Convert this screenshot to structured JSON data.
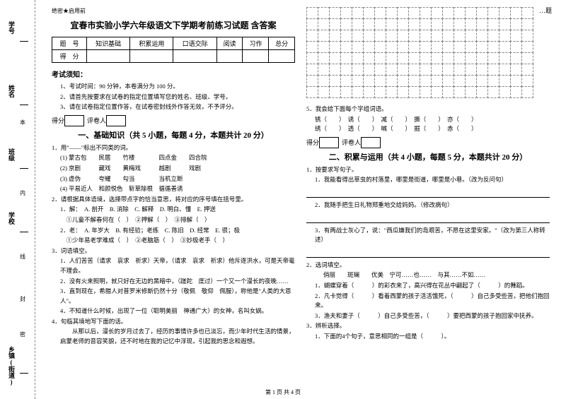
{
  "corner_label": "…题",
  "confidential": "绝密★启用前",
  "title": "宜春市实验小学六年级语文下学期考前练习试题 含答案",
  "score_table": {
    "r1": [
      "题　号",
      "知识基础",
      "积累运用",
      "口语交际",
      "阅读",
      "习作",
      "总分"
    ],
    "r2": [
      "得　分",
      "",
      "",
      "",
      "",
      "",
      ""
    ]
  },
  "notice_head": "考试须知：",
  "notices": [
    "1、考试时间：90 分钟，本卷满分为 100 分。",
    "2、请首先按要求在试卷的指定位置填写您的姓名、班级、学号。",
    "3、请在试卷指定位置作答，在试卷密封线外作答无效，不予评分。"
  ],
  "scorebox_labels": {
    "score": "得分",
    "marker": "评卷人"
  },
  "part1_title": "一、基础知识（共 5 小题，每题 4 分，本题共计 20 分）",
  "q1_head": "1．用\"——\"标出不同类的词。",
  "q1_rows": [
    "(1) 蒙古包　　民居　　竹楼　　　　四点金　　四合院",
    "(2) 京剧　　　藏戏　　黄梅戏　　　越剧　　　戏剧",
    "(3) 虚伪　　　夸耀　　勾当　　　　当机立断",
    "(4) 平易近人　和颜悦色　斩草除根　循循善诱"
  ],
  "q2_head": "2．请根据具体语境，选择带点字的恰当意思，将对应的序号填在括号里。",
  "q2_lines": [
    "1．解：　A. 剖开　B. 消除　C. 解释　D. 明白、懂　E. 押送",
    "　①儿童不解春何在（　）　②押解（　）　③排解（　）",
    "2．老：　A. 年岁大　B. 有经验；老练　C. 陈旧　D. 经常　E. 很；极",
    "　①少年易老学难成（　）　②老脑筋（　）　③妙极老手（　）"
  ],
  "q3_head": "3．词语填空。",
  "q3_lines": [
    "1．人们苦苦（请求　哀求　祈求）天帝，（请求　哀求　祈求）他斥逐洪水，可是天帝毫不理会。",
    "2．没有火来照明，就只好在无边的黑暗中，（蹉跎　度过）一个又一个漫长的夜晚……",
    "3．直到现在，希腊人对普罗米修斯仍然十分（敬佩　敬仰　佩服），称他是\"人类的大恩人\"。",
    "4．不知道什么时候，出现了一位（聪明美丽　神通广大）的女神，名叫女娲。"
  ],
  "q4_head": "4．句临其境地写下面的话。",
  "q4_lines": [
    "　　从那以后，漫长的岁月过去了，经历的事情许多也已淡忘，而少年时代生活的情景，启蒙老师的音容笑貌，还不时地在我的记忆中浮现，引起我的思念和遐想。"
  ],
  "q5_head": "5．我会给下面每个字组词语。",
  "q5_line": "锈（　　）　诱（　　）　减（　　）　撅（　　）　亦（　　）\n绣（　　）　透（　　）　喊（　　）　掘（　　）　赤（　　）",
  "part2_title": "二、积累与运用（共 4 小题，每题 5 分，本题共计 20 分）",
  "p2_q1_head": "1．按要求写句子。",
  "p2_q1_lines": [
    "1．我能看得出草虫的村落里，哪里是街道，哪里是小巷。（改为反问句）",
    "2．我随手把生日礼物郑重地交给妈妈。（修改病句）",
    "3．有两战士灰心了，说：\"西瓜嫌我们的岛艰苦，不愿在这里安家。\"（改为第三人称转述）"
  ],
  "p2_q2_head": "2．选词填空。",
  "p2_q2_line1": "俏丽　　斑斓　　优美　宁可……也……　与其……不如……",
  "p2_q2_lines": [
    "1．蝴蝶穿着（　　　）的彩衣来了，高兴得在花丛中翩起了（　　　）的舞蹈。",
    "2．凡卡觉得（　　　）看着西蒙的孩子活活饿死，（　　　）自己多受些苦，把他们抱回来。",
    "3．渔夫和妻子（　　　）自己多受些苦，（　　　）要把西蒙的孩子抱回家中抚养。"
  ],
  "p2_q3_head": "3．辨析选择。",
  "p2_q3_line": "1．下面的4个句子，意思相同的一组是（　　　）。",
  "left_labels": {
    "l1": "学号",
    "l2": "姓名",
    "l3": "班级",
    "l4": "学校",
    "l5": "",
    "l6": "乡镇(街道)"
  },
  "side_chars": {
    "c1": "本",
    "c2": "内",
    "c3": "线",
    "c4": "封",
    "c5": "密"
  },
  "footer": "第 1 页 共 4 页"
}
